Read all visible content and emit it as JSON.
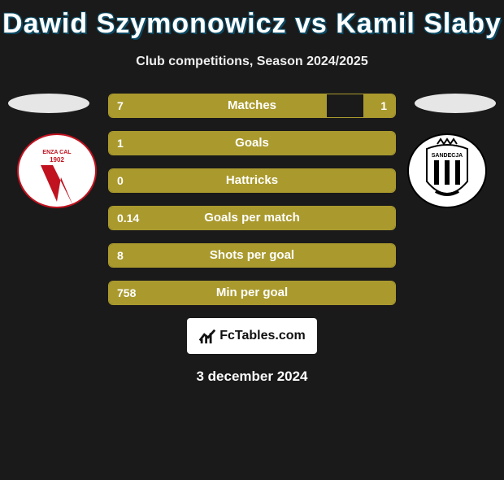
{
  "title": "Dawid Szymonowicz vs Kamil Slaby",
  "subtitle": "Club competitions, Season 2024/2025",
  "date": "3 december 2024",
  "colors": {
    "bar_fill": "#aa9a2e",
    "bar_border": "#aa9a2e",
    "background": "#1a1a1a",
    "title_outline": "#0d4a63"
  },
  "branding": {
    "text": "FcTables.com",
    "icon_name": "chart-icon"
  },
  "shields": {
    "left": {
      "name": "vicenza-calcio-shield",
      "primary": "#ffffff",
      "accent": "#c1121f"
    },
    "right": {
      "name": "sandecja-shield",
      "primary": "#ffffff",
      "accent": "#000000"
    }
  },
  "stats": [
    {
      "label": "Matches",
      "left_value": "7",
      "right_value": "1",
      "left_pct": 76,
      "right_pct": 11
    },
    {
      "label": "Goals",
      "left_value": "1",
      "right_value": "",
      "left_pct": 100,
      "right_pct": 0
    },
    {
      "label": "Hattricks",
      "left_value": "0",
      "right_value": "",
      "left_pct": 100,
      "right_pct": 0
    },
    {
      "label": "Goals per match",
      "left_value": "0.14",
      "right_value": "",
      "left_pct": 100,
      "right_pct": 0
    },
    {
      "label": "Shots per goal",
      "left_value": "8",
      "right_value": "",
      "left_pct": 100,
      "right_pct": 0
    },
    {
      "label": "Min per goal",
      "left_value": "758",
      "right_value": "",
      "left_pct": 100,
      "right_pct": 0
    }
  ]
}
